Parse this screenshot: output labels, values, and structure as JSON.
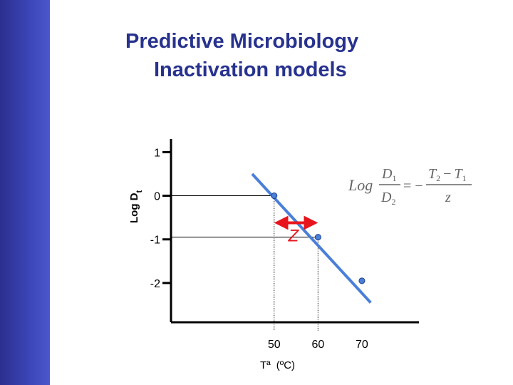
{
  "slide": {
    "title_line1": "Predictive Microbiology",
    "title_line2": "Inactivation models"
  },
  "formula": {
    "log": "Log",
    "num_left": "D",
    "num_left_sub": "1",
    "den_left": "D",
    "den_left_sub": "2",
    "equals": "= −",
    "num_right_a": "T",
    "num_right_a_sub": "2",
    "minus": "−",
    "num_right_b": "T",
    "num_right_b_sub": "1",
    "den_right": "z"
  },
  "colors": {
    "sidebar": "#3a44b5",
    "title": "#27328f",
    "line": "#4a7fd9",
    "points": "#4a7fd9",
    "z_arrow": "#e8141c",
    "z_label": "#e8141c"
  },
  "chart_data": {
    "type": "line",
    "xlabel_main": "Tª (ºC)",
    "xlabel_text": "Tª",
    "xlabel_units": "(ºC)",
    "ylabel": "Log D",
    "ylabel_sub": "t",
    "x_ticks": [
      50,
      60,
      70
    ],
    "y_ticks": [
      1,
      0,
      -1,
      -2
    ],
    "xlim": [
      26.5,
      83
    ],
    "ylim": [
      -2.9,
      1.3
    ],
    "line": {
      "x": [
        45,
        72
      ],
      "y": [
        0.5,
        -2.45
      ]
    },
    "points": [
      {
        "x": 50,
        "y": 0
      },
      {
        "x": 60,
        "y": -0.95
      },
      {
        "x": 70,
        "y": -1.95
      }
    ],
    "guides": [
      {
        "x": 50,
        "y": 0
      },
      {
        "x": 60,
        "y": -0.95
      }
    ],
    "z_annotation": {
      "label": "Z",
      "x_from": 50,
      "x_to": 60,
      "y": -0.62
    }
  }
}
